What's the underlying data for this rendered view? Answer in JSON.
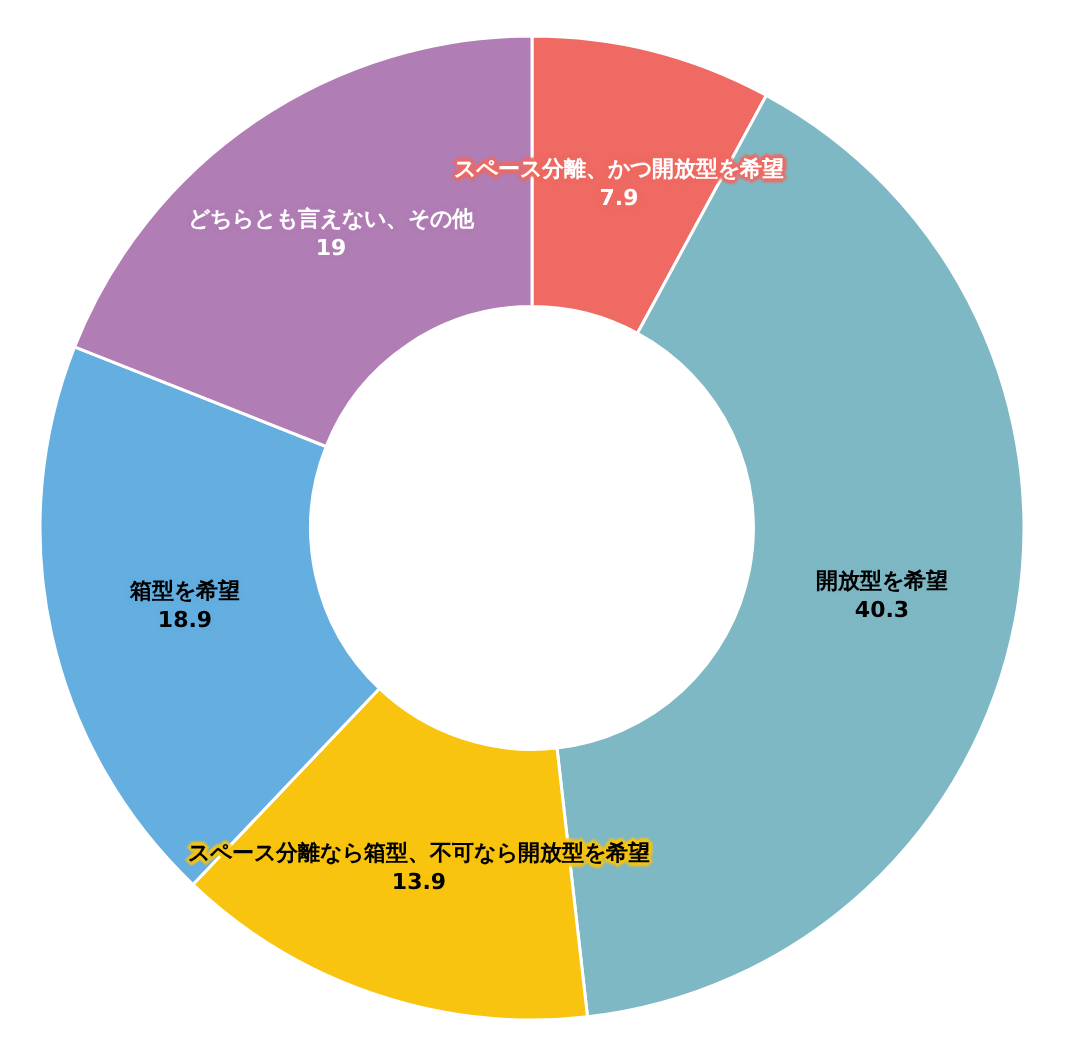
{
  "chart_data": {
    "type": "donut",
    "categories": [
      "スペース分離、かつ開放型を希望",
      "開放型を希望",
      "スペース分離なら箱型、不可なら開放型を希望",
      "箱型を希望",
      "どちらとも言えない、その他"
    ],
    "values": [
      7.9,
      40.3,
      13.9,
      18.9,
      19
    ],
    "colors": [
      "#ee6a62",
      "#7eb8c4",
      "#f8c40f",
      "#64aee0",
      "#b07db4"
    ],
    "data_labels": true,
    "legend": false
  }
}
